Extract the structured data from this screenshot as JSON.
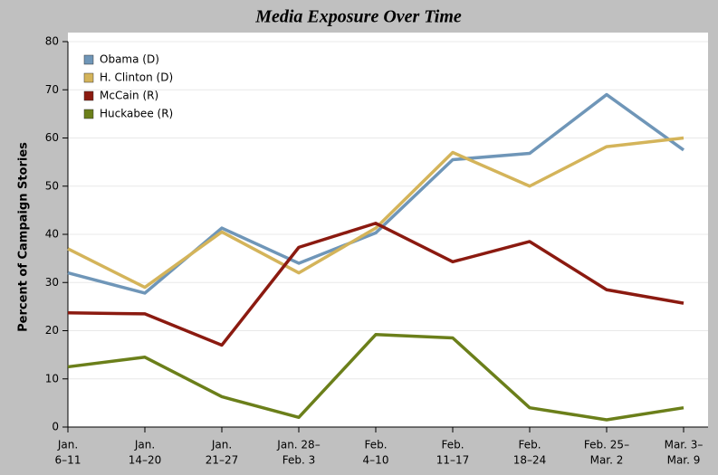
{
  "chart_data": {
    "type": "line",
    "title": "Media Exposure Over Time",
    "y_label": "Percent of Campaign Stories",
    "categories": [
      [
        "Jan.",
        "6–11"
      ],
      [
        "Jan.",
        "14–20"
      ],
      [
        "Jan.",
        "21–27"
      ],
      [
        "Jan. 28–",
        "Feb. 3"
      ],
      [
        "Feb.",
        "4–10"
      ],
      [
        "Feb.",
        "11–17"
      ],
      [
        "Feb.",
        "18–24"
      ],
      [
        "Feb. 25–",
        "Mar. 2"
      ],
      [
        "Mar. 3–",
        "Mar. 9"
      ]
    ],
    "series": [
      {
        "name": "Obama (D)",
        "color": "#6f96b8",
        "values": [
          32,
          27.8,
          41.3,
          34,
          40.3,
          55.5,
          56.8,
          69,
          57.5
        ]
      },
      {
        "name": "H. Clinton (D)",
        "color": "#d4b45a",
        "values": [
          37,
          29,
          40.5,
          32,
          41.3,
          57,
          50,
          58.2,
          60
        ]
      },
      {
        "name": "McCain (R)",
        "color": "#8b1a10",
        "values": [
          23.7,
          23.5,
          17,
          37.3,
          42.3,
          34.3,
          38.5,
          28.5,
          25.7
        ]
      },
      {
        "name": "Huckabee (R)",
        "color": "#6b7f1a",
        "values": [
          12.5,
          14.5,
          6.3,
          2,
          19.2,
          18.5,
          4,
          1.5,
          4
        ]
      }
    ],
    "ylim": [
      0,
      80
    ],
    "yticks": [
      0,
      10,
      20,
      30,
      40,
      50,
      60,
      70,
      80
    ],
    "grid": true,
    "legend": "upper-left"
  }
}
